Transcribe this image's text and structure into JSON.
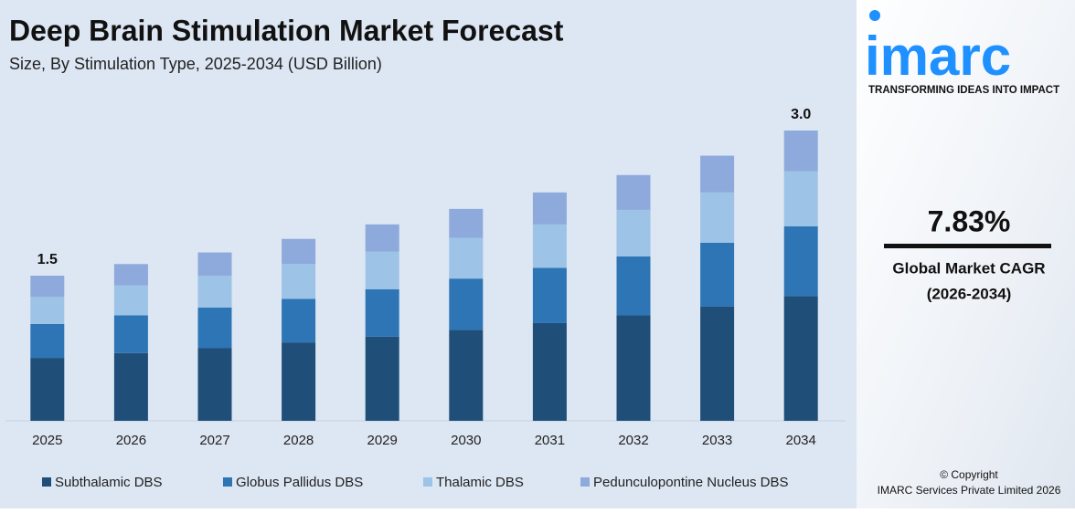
{
  "chart_data": {
    "type": "stacked-bar",
    "title": "Deep Brain Stimulation Market Forecast",
    "subtitle": "Size, By Stimulation Type, 2025-2034 (USD Billion)",
    "categories": [
      "2025",
      "2026",
      "2027",
      "2028",
      "2029",
      "2030",
      "2031",
      "2032",
      "2033",
      "2034"
    ],
    "series": [
      {
        "name": "Subthalamic DBS",
        "color": "#1f4e79",
        "values": [
          0.65,
          0.7,
          0.75,
          0.81,
          0.87,
          0.94,
          1.01,
          1.09,
          1.18,
          1.29
        ]
      },
      {
        "name": "Globus Pallidus DBS",
        "color": "#2e75b6",
        "values": [
          0.35,
          0.39,
          0.42,
          0.45,
          0.49,
          0.53,
          0.57,
          0.61,
          0.66,
          0.72
        ]
      },
      {
        "name": "Thalamic DBS",
        "color": "#9dc3e6",
        "values": [
          0.28,
          0.31,
          0.33,
          0.36,
          0.39,
          0.42,
          0.45,
          0.48,
          0.52,
          0.57
        ]
      },
      {
        "name": "Pedunculopontine Nucleus DBS",
        "color": "#8ea9db",
        "values": [
          0.22,
          0.22,
          0.24,
          0.26,
          0.28,
          0.3,
          0.33,
          0.36,
          0.38,
          0.42
        ]
      }
    ],
    "data_labels": [
      {
        "category": "2025",
        "value": 1.5,
        "label": "1.5"
      },
      {
        "category": "2034",
        "value": 3,
        "label": "3.0"
      }
    ],
    "legend": "bottom"
  },
  "side_panel": {
    "logo": "imarc",
    "tagline": "TRANSFORMING IDEAS INTO IMPACT",
    "cagr": "7.83%",
    "cagr_label": "Global Market CAGR",
    "cagr_period": "(2026-2034)",
    "copyright": "© Copyright",
    "company": "IMARC Services Private Limited 2026"
  }
}
